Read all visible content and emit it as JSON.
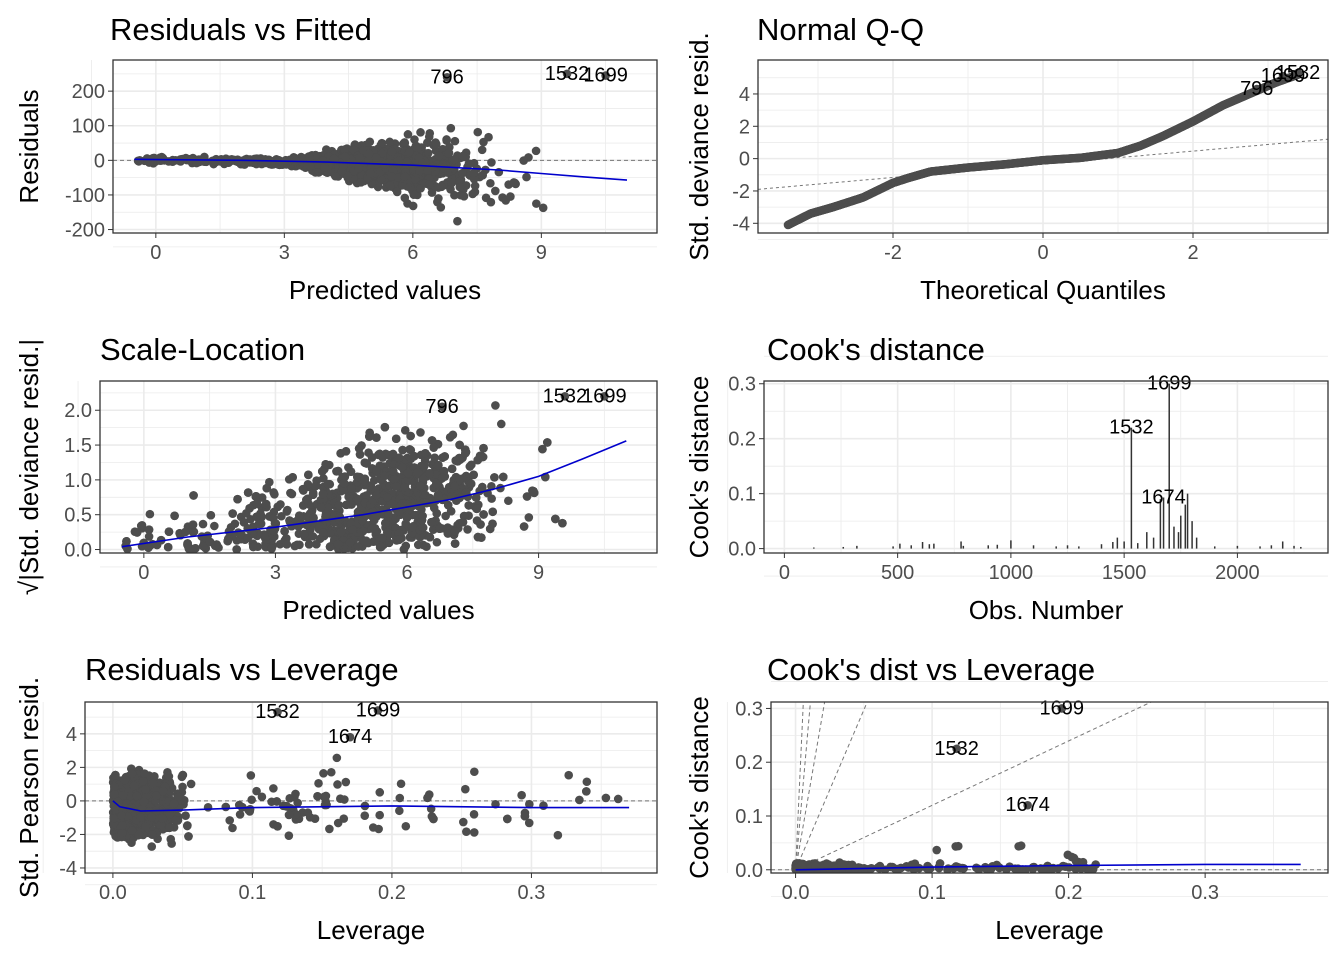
{
  "panels": [
    {
      "id": "resid_fitted",
      "title": "Residuals vs Fitted",
      "xlabel": "Predicted values",
      "ylabel": "Residuals",
      "ylabel_prefix": "",
      "x_ticks": [
        "0",
        "3",
        "6",
        "9"
      ],
      "y_ticks": [
        "-200",
        "-100",
        "0",
        "100",
        "200"
      ],
      "annotations": [
        "796",
        "1532",
        "1699"
      ]
    },
    {
      "id": "normal_qq",
      "title": "Normal Q-Q",
      "xlabel": "Theoretical Quantiles",
      "ylabel": "Std. deviance resid.",
      "ylabel_prefix": "",
      "x_ticks": [
        "-2",
        "0",
        "2"
      ],
      "y_ticks": [
        "-4",
        "-2",
        "0",
        "2",
        "4"
      ],
      "annotations": [
        "796",
        "1699",
        "1532"
      ]
    },
    {
      "id": "scale_location",
      "title": "Scale-Location",
      "xlabel": "Predicted values",
      "ylabel": "|Std. deviance resid.|",
      "ylabel_prefix": "√",
      "x_ticks": [
        "0",
        "3",
        "6",
        "9"
      ],
      "y_ticks": [
        "0.0",
        "0.5",
        "1.0",
        "1.5",
        "2.0"
      ],
      "annotations": [
        "796",
        "1532",
        "1699"
      ]
    },
    {
      "id": "cooks_distance",
      "title": "Cook's distance",
      "xlabel": "Obs. Number",
      "ylabel": "Cook's distance",
      "ylabel_prefix": "",
      "x_ticks": [
        "0",
        "500",
        "1000",
        "1500",
        "2000"
      ],
      "y_ticks": [
        "0.0",
        "0.1",
        "0.2",
        "0.3"
      ],
      "annotations": [
        "1699",
        "1532",
        "1674"
      ]
    },
    {
      "id": "resid_leverage",
      "title": "Residuals vs Leverage",
      "xlabel": "Leverage",
      "ylabel": "Std. Pearson resid.",
      "ylabel_prefix": "",
      "x_ticks": [
        "0.0",
        "0.1",
        "0.2",
        "0.3"
      ],
      "y_ticks": [
        "-4",
        "-2",
        "0",
        "2",
        "4"
      ],
      "annotations": [
        "1532",
        "1699",
        "1674"
      ]
    },
    {
      "id": "cooks_leverage",
      "title": "Cook's dist vs Leverage",
      "xlabel": "Leverage",
      "ylabel": "Cook's distance",
      "ylabel_prefix": "",
      "x_ticks": [
        "0.0",
        "0.1",
        "0.2",
        "0.3"
      ],
      "y_ticks": [
        "0.0",
        "0.1",
        "0.2",
        "0.3"
      ],
      "annotations": [
        "1699",
        "1532",
        "1674"
      ]
    }
  ],
  "colors": {
    "points": "#4d4d4d",
    "smooth": "#0000cc",
    "panel_border": "#333333",
    "grid": "#ebebeb"
  },
  "chart_data": [
    {
      "type": "scatter",
      "title": "Residuals vs Fitted",
      "xlabel": "Predicted values",
      "ylabel": "Residuals",
      "xlim": [
        -1,
        11.7
      ],
      "ylim": [
        -210,
        290
      ],
      "x_ticks": [
        0,
        3,
        6,
        9
      ],
      "y_ticks": [
        -200,
        -100,
        0,
        100,
        200
      ],
      "reference_line": {
        "y": 0,
        "style": "dashed"
      },
      "labeled_points": [
        {
          "label": "796",
          "x": 6.8,
          "y": 240
        },
        {
          "label": "1532",
          "x": 9.6,
          "y": 250
        },
        {
          "label": "1699",
          "x": 10.5,
          "y": 245
        }
      ],
      "smooth": {
        "x": [
          -0.5,
          0,
          2,
          4,
          6,
          8,
          9,
          10,
          11
        ],
        "y": [
          3,
          2,
          0,
          -5,
          -14,
          -28,
          -38,
          -48,
          -57
        ]
      },
      "points_shape": "dense cloud; near 0 for fitted<3, fanning out to about ±200 for fitted>6"
    },
    {
      "type": "scatter",
      "title": "Normal Q-Q",
      "xlabel": "Theoretical Quantiles",
      "ylabel": "Std. deviance resid.",
      "xlim": [
        -3.8,
        3.8
      ],
      "ylim": [
        -4.6,
        6.1
      ],
      "x_ticks": [
        -2,
        0,
        2
      ],
      "y_ticks": [
        -4,
        -2,
        0,
        2,
        4
      ],
      "reference_line": {
        "x": [
          -3.8,
          3.8
        ],
        "y": [
          -1.9,
          1.2
        ],
        "style": "dashed"
      },
      "qq_curve": {
        "x": [
          -3.4,
          -3.1,
          -2.8,
          -2.4,
          -2.0,
          -1.8,
          -1.5,
          -1.0,
          -0.5,
          0,
          0.5,
          1.0,
          1.3,
          1.6,
          2.0,
          2.4,
          2.8,
          3.1,
          3.4
        ],
        "y": [
          -4.1,
          -3.4,
          -3.0,
          -2.4,
          -1.5,
          -1.2,
          -0.8,
          -0.55,
          -0.35,
          -0.1,
          0.05,
          0.35,
          0.8,
          1.4,
          2.3,
          3.3,
          4.1,
          4.7,
          5.2
        ]
      },
      "labeled_points": [
        {
          "label": "796",
          "x": 2.85,
          "y": 4.3
        },
        {
          "label": "1699",
          "x": 3.2,
          "y": 5.1
        },
        {
          "label": "1532",
          "x": 3.4,
          "y": 5.3
        }
      ]
    },
    {
      "type": "scatter",
      "title": "Scale-Location",
      "xlabel": "Predicted values",
      "ylabel": "√|Std. deviance resid.|",
      "xlim": [
        -1,
        11.7
      ],
      "ylim": [
        -0.05,
        2.42
      ],
      "x_ticks": [
        0,
        3,
        6,
        9
      ],
      "y_ticks": [
        0.0,
        0.5,
        1.0,
        1.5,
        2.0
      ],
      "labeled_points": [
        {
          "label": "796",
          "x": 6.8,
          "y": 2.05
        },
        {
          "label": "1532",
          "x": 9.6,
          "y": 2.2
        },
        {
          "label": "1699",
          "x": 10.5,
          "y": 2.2
        }
      ],
      "smooth": {
        "x": [
          -0.5,
          1,
          3,
          5,
          7,
          8,
          9,
          10,
          11
        ],
        "y": [
          0.04,
          0.18,
          0.32,
          0.5,
          0.72,
          0.87,
          1.05,
          1.3,
          1.56
        ]
      }
    },
    {
      "type": "bar",
      "title": "Cook's distance",
      "xlabel": "Obs. Number",
      "ylabel": "Cook's distance",
      "xlim": [
        -90,
        2400
      ],
      "ylim": [
        -0.008,
        0.305
      ],
      "x_ticks": [
        0,
        500,
        1000,
        1500,
        2000
      ],
      "y_ticks": [
        0.0,
        0.1,
        0.2,
        0.3
      ],
      "bars": [
        {
          "x": 130,
          "y": 0.002
        },
        {
          "x": 260,
          "y": 0.003
        },
        {
          "x": 320,
          "y": 0.005
        },
        {
          "x": 480,
          "y": 0.004
        },
        {
          "x": 510,
          "y": 0.009
        },
        {
          "x": 560,
          "y": 0.006
        },
        {
          "x": 610,
          "y": 0.012
        },
        {
          "x": 640,
          "y": 0.008
        },
        {
          "x": 660,
          "y": 0.009
        },
        {
          "x": 780,
          "y": 0.013
        },
        {
          "x": 790,
          "y": 0.005
        },
        {
          "x": 900,
          "y": 0.006
        },
        {
          "x": 940,
          "y": 0.007
        },
        {
          "x": 1000,
          "y": 0.015
        },
        {
          "x": 1100,
          "y": 0.006
        },
        {
          "x": 1200,
          "y": 0.004
        },
        {
          "x": 1250,
          "y": 0.006
        },
        {
          "x": 1300,
          "y": 0.004
        },
        {
          "x": 1400,
          "y": 0.008
        },
        {
          "x": 1450,
          "y": 0.012
        },
        {
          "x": 1470,
          "y": 0.02
        },
        {
          "x": 1500,
          "y": 0.013
        },
        {
          "x": 1532,
          "y": 0.22
        },
        {
          "x": 1560,
          "y": 0.01
        },
        {
          "x": 1600,
          "y": 0.03
        },
        {
          "x": 1630,
          "y": 0.02
        },
        {
          "x": 1660,
          "y": 0.09
        },
        {
          "x": 1674,
          "y": 0.093
        },
        {
          "x": 1699,
          "y": 0.3
        },
        {
          "x": 1720,
          "y": 0.04
        },
        {
          "x": 1740,
          "y": 0.03
        },
        {
          "x": 1750,
          "y": 0.06
        },
        {
          "x": 1770,
          "y": 0.08
        },
        {
          "x": 1780,
          "y": 0.1
        },
        {
          "x": 1800,
          "y": 0.05
        },
        {
          "x": 1820,
          "y": 0.02
        },
        {
          "x": 1900,
          "y": 0.004
        },
        {
          "x": 2000,
          "y": 0.005
        },
        {
          "x": 2100,
          "y": 0.004
        },
        {
          "x": 2150,
          "y": 0.006
        },
        {
          "x": 2200,
          "y": 0.013
        },
        {
          "x": 2250,
          "y": 0.005
        },
        {
          "x": 2280,
          "y": 0.003
        }
      ],
      "labeled_points": [
        {
          "label": "1699",
          "x": 1699,
          "y": 0.3
        },
        {
          "label": "1532",
          "x": 1532,
          "y": 0.22
        },
        {
          "label": "1674",
          "x": 1674,
          "y": 0.093
        }
      ]
    },
    {
      "type": "scatter",
      "title": "Residuals vs Leverage",
      "xlabel": "Leverage",
      "ylabel": "Std. Pearson resid.",
      "xlim": [
        -0.02,
        0.39
      ],
      "ylim": [
        -4.3,
        5.9
      ],
      "x_ticks": [
        0.0,
        0.1,
        0.2,
        0.3
      ],
      "y_ticks": [
        -4,
        -2,
        0,
        2,
        4
      ],
      "reference_line": {
        "y": 0,
        "style": "dashed"
      },
      "labeled_points": [
        {
          "label": "1532",
          "x": 0.118,
          "y": 5.3
        },
        {
          "label": "1699",
          "x": 0.19,
          "y": 5.4
        },
        {
          "label": "1674",
          "x": 0.17,
          "y": 3.8
        }
      ],
      "smooth": {
        "x": [
          0.0,
          0.005,
          0.02,
          0.05,
          0.1,
          0.2,
          0.3,
          0.37
        ],
        "y": [
          0.0,
          -0.35,
          -0.6,
          -0.55,
          -0.4,
          -0.3,
          -0.4,
          -0.4
        ]
      }
    },
    {
      "type": "scatter",
      "title": "Cook's dist vs Leverage",
      "xlabel": "Leverage",
      "ylabel": "Cook's distance",
      "xlim": [
        -0.018,
        0.39
      ],
      "ylim": [
        -0.006,
        0.312
      ],
      "x_ticks": [
        0.0,
        0.1,
        0.2,
        0.3
      ],
      "y_ticks": [
        0.0,
        0.1,
        0.2,
        0.3
      ],
      "reference_line": {
        "y": 0,
        "style": "dashed"
      },
      "labeled_points": [
        {
          "label": "1699",
          "x": 0.195,
          "y": 0.3
        },
        {
          "label": "1532",
          "x": 0.118,
          "y": 0.225
        },
        {
          "label": "1674",
          "x": 0.17,
          "y": 0.12
        }
      ],
      "smooth": {
        "x": [
          0.0,
          0.1,
          0.2,
          0.3,
          0.37
        ],
        "y": [
          0.0,
          0.005,
          0.008,
          0.01,
          0.01
        ]
      }
    }
  ]
}
